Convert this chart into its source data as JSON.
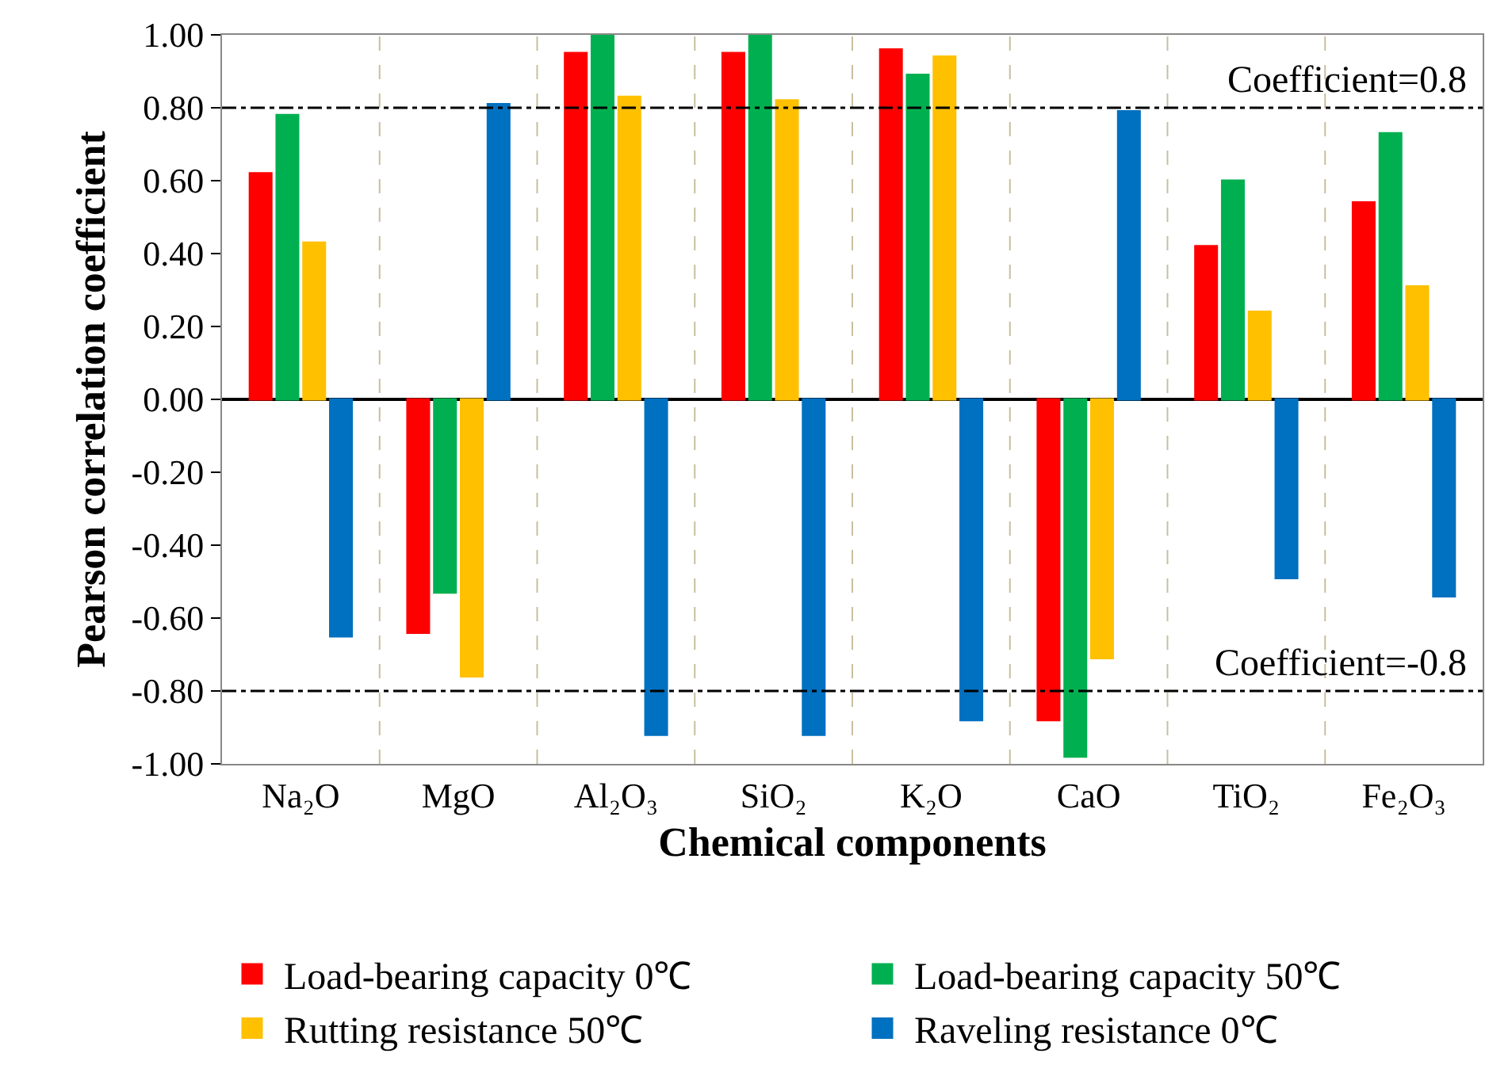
{
  "chart_data": {
    "type": "bar",
    "xlabel": "Chemical components",
    "ylabel": "Pearson correlation coefficient",
    "categories": [
      "Na₂O",
      "MgO",
      "Al₂O₃",
      "SiO₂",
      "K₂O",
      "CaO",
      "TiO₂",
      "Fe₂O₃"
    ],
    "series": [
      {
        "name": "Load-bearing capacity 0℃",
        "color": "#ff0000",
        "values": [
          0.62,
          -0.64,
          0.95,
          0.95,
          0.96,
          -0.88,
          0.42,
          0.54
        ]
      },
      {
        "name": "Load-bearing capacity 50℃",
        "color": "#00b050",
        "values": [
          0.78,
          -0.53,
          1.0,
          1.0,
          0.89,
          -0.98,
          0.6,
          0.73
        ]
      },
      {
        "name": "Rutting resistance 50℃",
        "color": "#ffc000",
        "values": [
          0.43,
          -0.76,
          0.83,
          0.82,
          0.94,
          -0.71,
          0.24,
          0.31
        ]
      },
      {
        "name": "Raveling resistance 0℃",
        "color": "#0070c0",
        "values": [
          -0.65,
          0.81,
          -0.92,
          -0.92,
          -0.88,
          0.79,
          -0.49,
          -0.54
        ]
      }
    ],
    "ylim": [
      -1,
      1
    ],
    "yticks": [
      {
        "value": -1,
        "label": "-1.00"
      },
      {
        "value": -0.8,
        "label": "-0.80"
      },
      {
        "value": -0.6,
        "label": "-0.60"
      },
      {
        "value": -0.4,
        "label": "-0.40"
      },
      {
        "value": -0.2,
        "label": "-0.20"
      },
      {
        "value": 0,
        "label": "0.00"
      },
      {
        "value": 0.2,
        "label": "0.20"
      },
      {
        "value": 0.4,
        "label": "0.40"
      },
      {
        "value": 0.6,
        "label": "0.60"
      },
      {
        "value": 0.8,
        "label": "0.80"
      },
      {
        "value": 1,
        "label": "1.00"
      }
    ],
    "ref_lines": [
      {
        "axis": "y",
        "value": 0.8,
        "label": "Coefficient=0.8"
      },
      {
        "axis": "y",
        "value": -0.8,
        "label": "Coefficient=-0.8"
      }
    ],
    "grid": "x",
    "legend": "bottom"
  }
}
